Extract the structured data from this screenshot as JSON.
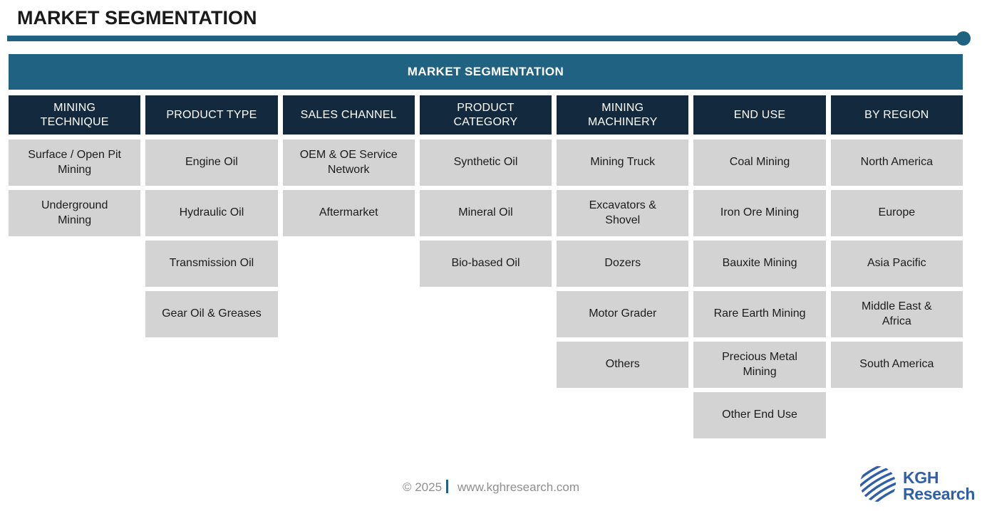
{
  "page": {
    "title": "MARKET SEGMENTATION",
    "banner": "MARKET SEGMENTATION"
  },
  "colors": {
    "teal": "#1F6281",
    "navy": "#13293E",
    "cell_gray": "#D3D3D3",
    "logo_blue": "#2E5FA8",
    "footer_gray": "#8F8F8F",
    "title_color": "#1A1A1A"
  },
  "segmentation": {
    "columns": [
      {
        "header": "MINING\nTECHNIQUE",
        "items": [
          "Surface / Open Pit\nMining",
          "Underground\nMining"
        ]
      },
      {
        "header": "PRODUCT TYPE",
        "items": [
          "Engine Oil",
          "Hydraulic Oil",
          "Transmission Oil",
          "Gear Oil & Greases"
        ]
      },
      {
        "header": "SALES CHANNEL",
        "items": [
          "OEM & OE Service\nNetwork",
          "Aftermarket"
        ]
      },
      {
        "header": "PRODUCT\nCATEGORY",
        "items": [
          "Synthetic Oil",
          "Mineral Oil",
          "Bio-based Oil"
        ]
      },
      {
        "header": "MINING\nMACHINERY",
        "items": [
          "Mining Truck",
          "Excavators &\nShovel",
          "Dozers",
          "Motor Grader",
          "Others"
        ]
      },
      {
        "header": "END USE",
        "items": [
          "Coal Mining",
          "Iron Ore Mining",
          "Bauxite Mining",
          "Rare Earth Mining",
          "Precious Metal\nMining",
          "Other End Use"
        ]
      },
      {
        "header": "BY REGION",
        "items": [
          "North America",
          "Europe",
          "Asia Pacific",
          "Middle East &\nAfrica",
          "South America"
        ]
      }
    ]
  },
  "footer": {
    "copyright": "© 2025",
    "separator": "|",
    "website": "www.kghresearch.com"
  },
  "logo": {
    "icon": "globe-icon",
    "line1": "KGH",
    "line2": "Research"
  }
}
